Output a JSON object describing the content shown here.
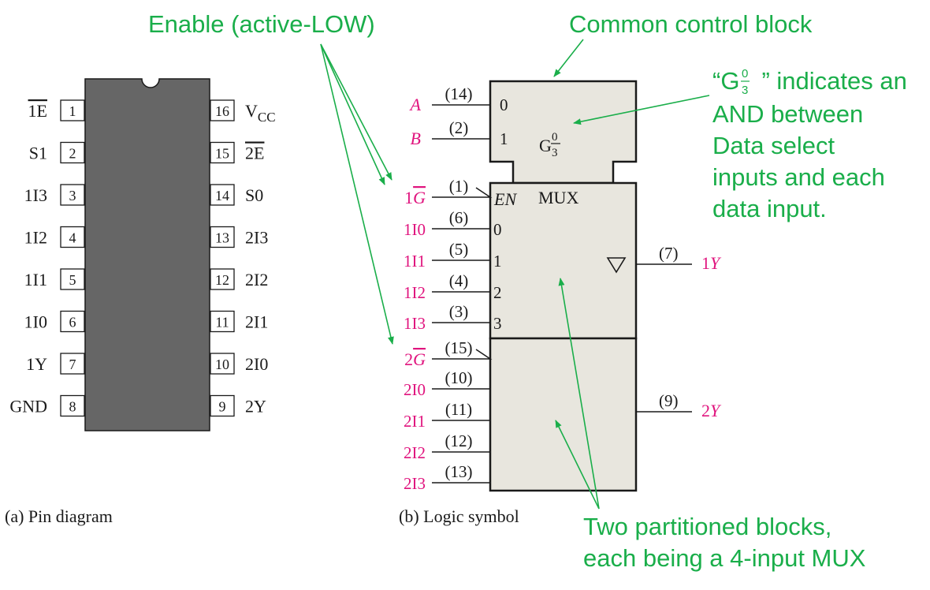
{
  "colors": {
    "annotation": "#1aae4a",
    "signal": "#e0147e",
    "chip_body": "#666666",
    "block_fill": "#e8e6de",
    "ink": "#1a1a1a"
  },
  "annotations": {
    "enable": "Enable (active-LOW)",
    "common_control": "Common control block",
    "g_note": {
      "open_quote": "“G",
      "sup": "0",
      "sub": "3",
      "rest": "” indicates an",
      "lines": [
        "AND between",
        "Data select",
        "inputs and each",
        "data input."
      ]
    },
    "partitioned": [
      "Two partitioned blocks,",
      "each being a 4-input MUX"
    ]
  },
  "pin_diagram": {
    "caption": "(a) Pin diagram",
    "left_pins": [
      {
        "num": "1",
        "label": "1E",
        "overline": true
      },
      {
        "num": "2",
        "label": "S1",
        "overline": false
      },
      {
        "num": "3",
        "label": "1I3",
        "overline": false
      },
      {
        "num": "4",
        "label": "1I2",
        "overline": false
      },
      {
        "num": "5",
        "label": "1I1",
        "overline": false
      },
      {
        "num": "6",
        "label": "1I0",
        "overline": false
      },
      {
        "num": "7",
        "label": "1Y",
        "overline": false
      },
      {
        "num": "8",
        "label": "GND",
        "overline": false
      }
    ],
    "right_pins": [
      {
        "num": "16",
        "label": "V",
        "sub": "CC",
        "overline": false
      },
      {
        "num": "15",
        "label": "2E",
        "overline": true
      },
      {
        "num": "14",
        "label": "S0",
        "overline": false
      },
      {
        "num": "13",
        "label": "2I3",
        "overline": false
      },
      {
        "num": "12",
        "label": "2I2",
        "overline": false
      },
      {
        "num": "11",
        "label": "2I1",
        "overline": false
      },
      {
        "num": "10",
        "label": "2I0",
        "overline": false
      },
      {
        "num": "9",
        "label": "2Y",
        "overline": false
      }
    ]
  },
  "logic_symbol": {
    "caption": "(b) Logic symbol",
    "control": {
      "g_main": "G",
      "g_num": "0",
      "g_den": "3",
      "inputs": [
        {
          "signal": "A",
          "pin": "(14)",
          "index": "0"
        },
        {
          "signal": "B",
          "pin": "(2)",
          "index": "1"
        }
      ]
    },
    "mux1": {
      "en_label": "EN",
      "mux_label": "MUX",
      "enable": {
        "prefix": "1",
        "letter": "G",
        "pin": "(1)"
      },
      "inputs": [
        {
          "signal": "1I0",
          "pin": "(6)",
          "index": "0"
        },
        {
          "signal": "1I1",
          "pin": "(5)",
          "index": "1"
        },
        {
          "signal": "1I2",
          "pin": "(4)",
          "index": "2"
        },
        {
          "signal": "1I3",
          "pin": "(3)",
          "index": "3"
        }
      ],
      "output": {
        "pin": "(7)",
        "prefix": "1",
        "letter": "Y"
      }
    },
    "mux2": {
      "enable": {
        "prefix": "2",
        "letter": "G",
        "pin": "(15)"
      },
      "inputs": [
        {
          "signal": "2I0",
          "pin": "(10)"
        },
        {
          "signal": "2I1",
          "pin": "(11)"
        },
        {
          "signal": "2I2",
          "pin": "(12)"
        },
        {
          "signal": "2I3",
          "pin": "(13)"
        }
      ],
      "output": {
        "pin": "(9)",
        "prefix": "2",
        "letter": "Y"
      }
    }
  }
}
